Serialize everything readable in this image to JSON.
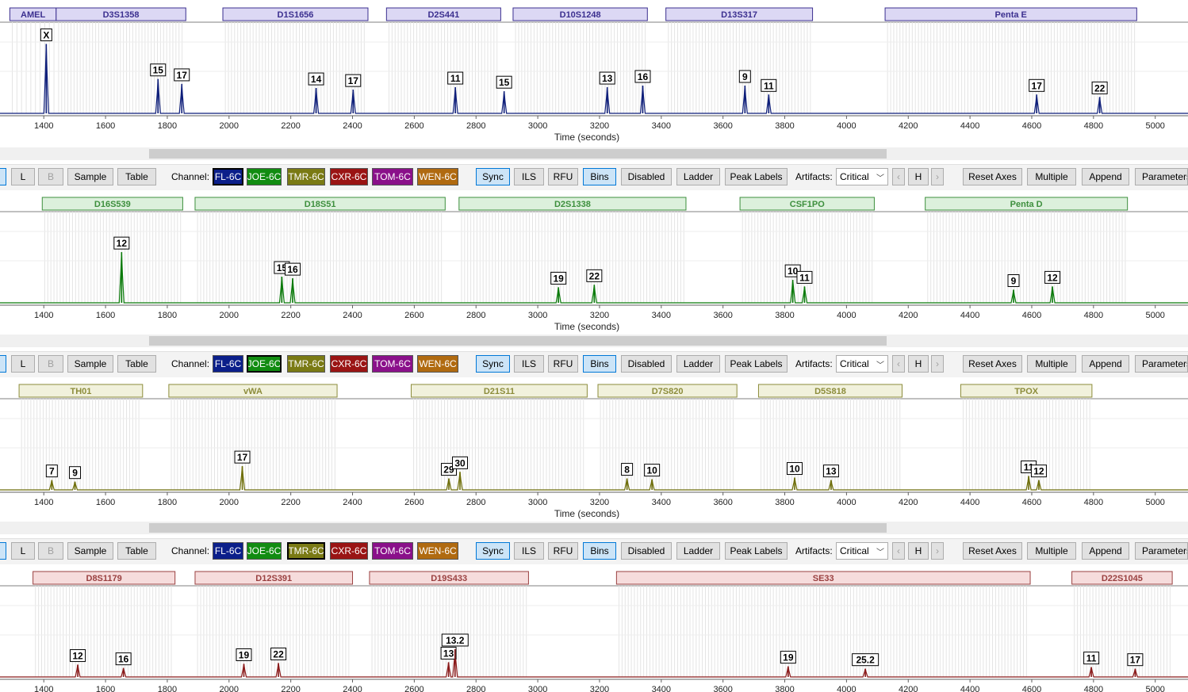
{
  "chart_data": [
    {
      "type": "line",
      "channel": "FL-6C",
      "color": "#0f1f7a",
      "bin_fill": "#dcd8f4",
      "bin_stroke": "#3b2f8f",
      "xlabel": "Time (seconds)",
      "xlim": [
        1300,
        5100
      ],
      "x_ticks": [
        1400,
        1600,
        1800,
        2000,
        2200,
        2400,
        2600,
        2800,
        3000,
        3200,
        3400,
        3600,
        3800,
        4000,
        4200,
        4400,
        4600,
        4800,
        5000
      ],
      "loci": [
        {
          "name": "AMEL",
          "start": 1290,
          "end": 1440
        },
        {
          "name": "D3S1358",
          "start": 1440,
          "end": 1860
        },
        {
          "name": "D1S1656",
          "start": 1980,
          "end": 2450
        },
        {
          "name": "D2S441",
          "start": 2510,
          "end": 2880
        },
        {
          "name": "D10S1248",
          "start": 2920,
          "end": 3355
        },
        {
          "name": "D13S317",
          "start": 3415,
          "end": 3890
        },
        {
          "name": "Penta E",
          "start": 4125,
          "end": 4940
        }
      ],
      "peaks": [
        {
          "label": "X",
          "x": 1408,
          "height": 0.85
        },
        {
          "label": "15",
          "x": 1770,
          "height": 0.42
        },
        {
          "label": "17",
          "x": 1847,
          "height": 0.36
        },
        {
          "label": "14",
          "x": 2282,
          "height": 0.31
        },
        {
          "label": "17",
          "x": 2402,
          "height": 0.29
        },
        {
          "label": "11",
          "x": 2733,
          "height": 0.32
        },
        {
          "label": "15",
          "x": 2891,
          "height": 0.27
        },
        {
          "label": "13",
          "x": 3225,
          "height": 0.32
        },
        {
          "label": "16",
          "x": 3340,
          "height": 0.34
        },
        {
          "label": "9",
          "x": 3671,
          "height": 0.34
        },
        {
          "label": "11",
          "x": 3748,
          "height": 0.23
        },
        {
          "label": "17",
          "x": 4616,
          "height": 0.23
        },
        {
          "label": "22",
          "x": 4820,
          "height": 0.2
        }
      ]
    },
    {
      "type": "line",
      "channel": "JOE-6C",
      "color": "#0a7a0a",
      "bin_fill": "#dcf0dc",
      "bin_stroke": "#3d8f3d",
      "xlabel": "Time (seconds)",
      "xlim": [
        1300,
        5100
      ],
      "x_ticks": [
        1400,
        1600,
        1800,
        2000,
        2200,
        2400,
        2600,
        2800,
        3000,
        3200,
        3400,
        3600,
        3800,
        4000,
        4200,
        4400,
        4600,
        4800,
        5000
      ],
      "loci": [
        {
          "name": "D16S539",
          "start": 1395,
          "end": 1850
        },
        {
          "name": "D18S51",
          "start": 1890,
          "end": 2700
        },
        {
          "name": "D2S1338",
          "start": 2745,
          "end": 3480
        },
        {
          "name": "CSF1PO",
          "start": 3655,
          "end": 4090
        },
        {
          "name": "Penta D",
          "start": 4255,
          "end": 4910
        }
      ],
      "peaks": [
        {
          "label": "12",
          "x": 1652,
          "height": 0.62
        },
        {
          "label": "15",
          "x": 2171,
          "height": 0.32
        },
        {
          "label": "16",
          "x": 2206,
          "height": 0.3
        },
        {
          "label": "19",
          "x": 3067,
          "height": 0.19
        },
        {
          "label": "22",
          "x": 3183,
          "height": 0.22
        },
        {
          "label": "10",
          "x": 3826,
          "height": 0.28
        },
        {
          "label": "11",
          "x": 3864,
          "height": 0.2
        },
        {
          "label": "9",
          "x": 4541,
          "height": 0.16
        },
        {
          "label": "12",
          "x": 4667,
          "height": 0.2
        }
      ]
    },
    {
      "type": "line",
      "channel": "TMR-6C",
      "color": "#6e6e0a",
      "bin_fill": "#f1f1dc",
      "bin_stroke": "#8c8c3a",
      "xlabel": "Time (seconds)",
      "xlim": [
        1300,
        5100
      ],
      "x_ticks": [
        1400,
        1600,
        1800,
        2000,
        2200,
        2400,
        2600,
        2800,
        3000,
        3200,
        3400,
        3600,
        3800,
        4000,
        4200,
        4400,
        4600,
        4800,
        5000
      ],
      "loci": [
        {
          "name": "TH01",
          "start": 1320,
          "end": 1720
        },
        {
          "name": "vWA",
          "start": 1805,
          "end": 2350
        },
        {
          "name": "D21S11",
          "start": 2590,
          "end": 3160
        },
        {
          "name": "D7S820",
          "start": 3195,
          "end": 3645
        },
        {
          "name": "D5S818",
          "start": 3715,
          "end": 4180
        },
        {
          "name": "TPOX",
          "start": 4370,
          "end": 4795
        }
      ],
      "peaks": [
        {
          "label": "7",
          "x": 1426,
          "height": 0.12
        },
        {
          "label": "9",
          "x": 1501,
          "height": 0.1
        },
        {
          "label": "17",
          "x": 2043,
          "height": 0.29
        },
        {
          "label": "29",
          "x": 2712,
          "height": 0.14
        },
        {
          "label": "30",
          "x": 2748,
          "height": 0.22
        },
        {
          "label": "8",
          "x": 3289,
          "height": 0.14
        },
        {
          "label": "10",
          "x": 3370,
          "height": 0.13
        },
        {
          "label": "10",
          "x": 3832,
          "height": 0.15
        },
        {
          "label": "13",
          "x": 3950,
          "height": 0.12
        },
        {
          "label": "11",
          "x": 4590,
          "height": 0.17
        },
        {
          "label": "12",
          "x": 4623,
          "height": 0.12
        }
      ]
    },
    {
      "type": "line",
      "channel": "CXR-6C",
      "color": "#8a1a1a",
      "bin_fill": "#f6dcdc",
      "bin_stroke": "#9a4040",
      "xlabel": "",
      "xlim": [
        1300,
        5100
      ],
      "x_ticks": [
        1400,
        1600,
        1800,
        2000,
        2200,
        2400,
        2600,
        2800,
        3000,
        3200,
        3400,
        3600,
        3800,
        4000,
        4200,
        4400,
        4600,
        4800,
        5000
      ],
      "loci": [
        {
          "name": "D8S1179",
          "start": 1365,
          "end": 1825
        },
        {
          "name": "D12S391",
          "start": 1890,
          "end": 2400
        },
        {
          "name": "D19S433",
          "start": 2455,
          "end": 2970
        },
        {
          "name": "SE33",
          "start": 3255,
          "end": 4595
        },
        {
          "name": "D22S1045",
          "start": 4730,
          "end": 5055
        }
      ],
      "peaks": [
        {
          "label": "12",
          "x": 1510,
          "height": 0.15
        },
        {
          "label": "16",
          "x": 1658,
          "height": 0.11
        },
        {
          "label": "19",
          "x": 2048,
          "height": 0.16
        },
        {
          "label": "22",
          "x": 2160,
          "height": 0.17
        },
        {
          "label": "13",
          "x": 2711,
          "height": 0.18
        },
        {
          "label": "13.2",
          "x": 2732,
          "height": 0.34
        },
        {
          "label": "19",
          "x": 3811,
          "height": 0.13
        },
        {
          "label": "25.2",
          "x": 4061,
          "height": 0.1
        },
        {
          "label": "11",
          "x": 4793,
          "height": 0.12
        },
        {
          "label": "17",
          "x": 4935,
          "height": 0.1
        }
      ]
    }
  ],
  "toolbar": {
    "btn_L": "L",
    "btn_B": "B",
    "btn_sample": "Sample",
    "btn_table": "Table",
    "channel_label": "Channel:",
    "channels": [
      {
        "name": "FL-6C",
        "bg": "#0b1f8a"
      },
      {
        "name": "JOE-6C",
        "bg": "#118c11"
      },
      {
        "name": "TMR-6C",
        "bg": "#7a7a14"
      },
      {
        "name": "CXR-6C",
        "bg": "#9a1414"
      },
      {
        "name": "TOM-6C",
        "bg": "#8a108a"
      },
      {
        "name": "WEN-6C",
        "bg": "#b06a10"
      }
    ],
    "btn_sync": "Sync",
    "btn_ils": "ILS",
    "btn_rfu": "RFU",
    "btn_bins": "Bins",
    "btn_disabled": "Disabled",
    "btn_ladder": "Ladder",
    "btn_peak_labels": "Peak Labels",
    "artifacts_label": "Artifacts:",
    "artifacts_value": "Critical",
    "btn_prev": "‹",
    "btn_h": "H",
    "btn_next": "›",
    "btn_reset_axes": "Reset Axes",
    "btn_multiple": "Multiple",
    "btn_append": "Append",
    "btn_parameters": "Parameters"
  }
}
